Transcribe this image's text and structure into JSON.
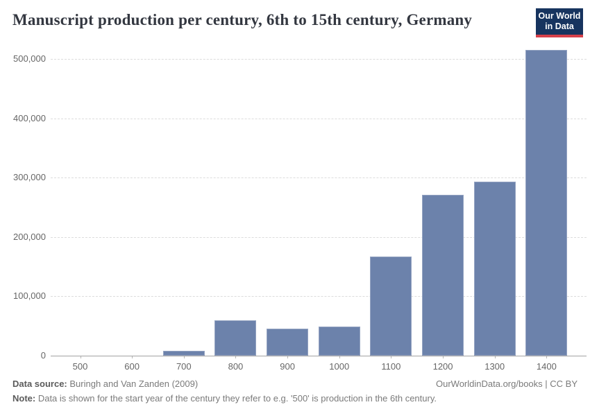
{
  "header": {
    "title": "Manuscript production per century, 6th to 15th century, Germany",
    "logo": {
      "line1": "Our World",
      "line2": "in Data",
      "bg_color": "#17345f",
      "stripe_color": "#d6404a"
    }
  },
  "chart_data": {
    "type": "bar",
    "title": "Manuscript production per century, 6th to 15th century, Germany",
    "categories": [
      "500",
      "600",
      "700",
      "800",
      "900",
      "1000",
      "1100",
      "1200",
      "1300",
      "1400"
    ],
    "values": [
      120,
      433,
      7629,
      59569,
      45625,
      49250,
      166715,
      270712,
      293367,
      514608
    ],
    "xlabel": "",
    "ylabel": "",
    "ylim": [
      0,
      500000
    ],
    "yticks": {
      "values": [
        0,
        100000,
        200000,
        300000,
        400000,
        500000
      ],
      "labels": [
        "0",
        "100,000",
        "200,000",
        "300,000",
        "400,000",
        "500,000"
      ]
    },
    "grid": "horizontal-dashed",
    "legend": "none",
    "bar_color": "#6c82ab",
    "gridline_color": "#dcdcdc",
    "axis_line_color": "#a1a1a1",
    "tick_label_color": "#666666"
  },
  "footer": {
    "source_label": "Data source:",
    "source_text": " Buringh and Van Zanden (2009)",
    "note_label": "Note:",
    "note_text": " Data is shown for the start year of the century they refer to e.g. '500' is production in the 6th century.",
    "link": "OurWorldinData.org/books | CC BY"
  }
}
